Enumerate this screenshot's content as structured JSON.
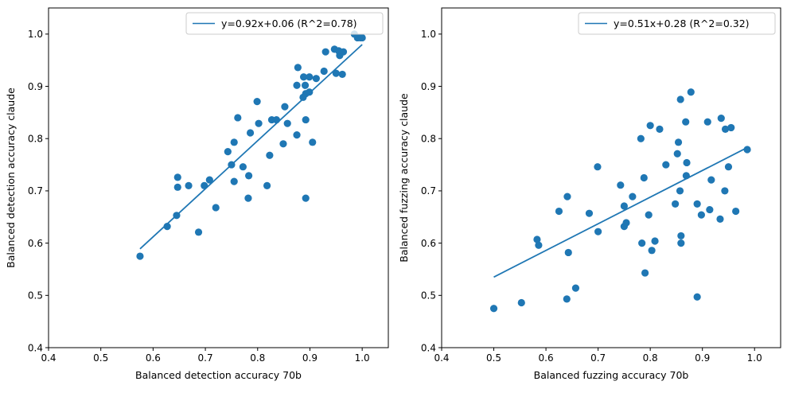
{
  "chart_data": [
    {
      "type": "scatter",
      "xlabel": "Balanced detection accuracy 70b",
      "ylabel": "Balanced detection accuracy claude",
      "xlim": [
        0.4,
        1.05
      ],
      "ylim": [
        0.4,
        1.05
      ],
      "xticks": [
        0.4,
        0.5,
        0.6,
        0.7,
        0.8,
        0.9,
        1.0
      ],
      "yticks": [
        0.4,
        0.5,
        0.6,
        0.7,
        0.8,
        0.9,
        1.0
      ],
      "tick_labels": [
        "0.4",
        "0.5",
        "0.6",
        "0.7",
        "0.8",
        "0.9",
        "1.0"
      ],
      "legend": {
        "label": "y=0.92x+0.06 (R^2=0.78)",
        "placement": "top-right"
      },
      "fit": {
        "slope": 0.92,
        "intercept": 0.06,
        "x_range": [
          0.575,
          1.0
        ]
      },
      "point_color": "#1f77b4",
      "points": [
        [
          0.575,
          0.575
        ],
        [
          0.627,
          0.632
        ],
        [
          0.645,
          0.653
        ],
        [
          0.647,
          0.726
        ],
        [
          0.647,
          0.707
        ],
        [
          0.668,
          0.71
        ],
        [
          0.687,
          0.621
        ],
        [
          0.698,
          0.71
        ],
        [
          0.708,
          0.721
        ],
        [
          0.72,
          0.668
        ],
        [
          0.743,
          0.775
        ],
        [
          0.75,
          0.75
        ],
        [
          0.755,
          0.793
        ],
        [
          0.755,
          0.718
        ],
        [
          0.762,
          0.84
        ],
        [
          0.772,
          0.746
        ],
        [
          0.782,
          0.686
        ],
        [
          0.783,
          0.729
        ],
        [
          0.786,
          0.811
        ],
        [
          0.799,
          0.871
        ],
        [
          0.802,
          0.829
        ],
        [
          0.818,
          0.71
        ],
        [
          0.823,
          0.768
        ],
        [
          0.827,
          0.836
        ],
        [
          0.836,
          0.836
        ],
        [
          0.849,
          0.79
        ],
        [
          0.852,
          0.861
        ],
        [
          0.857,
          0.829
        ],
        [
          0.875,
          0.807
        ],
        [
          0.875,
          0.902
        ],
        [
          0.877,
          0.936
        ],
        [
          0.887,
          0.879
        ],
        [
          0.888,
          0.918
        ],
        [
          0.891,
          0.902
        ],
        [
          0.892,
          0.886
        ],
        [
          0.892,
          0.836
        ],
        [
          0.892,
          0.686
        ],
        [
          0.899,
          0.918
        ],
        [
          0.899,
          0.889
        ],
        [
          0.905,
          0.793
        ],
        [
          0.912,
          0.915
        ],
        [
          0.927,
          0.929
        ],
        [
          0.93,
          0.966
        ],
        [
          0.947,
          0.971
        ],
        [
          0.95,
          0.925
        ],
        [
          0.955,
          0.968
        ],
        [
          0.957,
          0.959
        ],
        [
          0.962,
          0.923
        ],
        [
          0.964,
          0.966
        ],
        [
          0.985,
          1.0
        ],
        [
          0.991,
          0.993
        ],
        [
          0.997,
          0.993
        ],
        [
          1.0,
          0.993
        ]
      ]
    },
    {
      "type": "scatter",
      "xlabel": "Balanced fuzzing accuracy 70b",
      "ylabel": "Balanced fuzzing accuracy claude",
      "xlim": [
        0.4,
        1.05
      ],
      "ylim": [
        0.4,
        1.05
      ],
      "xticks": [
        0.4,
        0.5,
        0.6,
        0.7,
        0.8,
        0.9,
        1.0
      ],
      "yticks": [
        0.4,
        0.5,
        0.6,
        0.7,
        0.8,
        0.9,
        1.0
      ],
      "tick_labels": [
        "0.4",
        "0.5",
        "0.6",
        "0.7",
        "0.8",
        "0.9",
        "1.0"
      ],
      "legend": {
        "label": "y=0.51x+0.28 (R^2=0.32)",
        "placement": "top-right"
      },
      "fit": {
        "slope": 0.51,
        "intercept": 0.28,
        "x_range": [
          0.5,
          0.985
        ]
      },
      "point_color": "#1f77b4",
      "points": [
        [
          0.5,
          0.475
        ],
        [
          0.553,
          0.486
        ],
        [
          0.583,
          0.607
        ],
        [
          0.586,
          0.596
        ],
        [
          0.625,
          0.661
        ],
        [
          0.64,
          0.493
        ],
        [
          0.641,
          0.689
        ],
        [
          0.643,
          0.582
        ],
        [
          0.657,
          0.514
        ],
        [
          0.683,
          0.657
        ],
        [
          0.699,
          0.746
        ],
        [
          0.7,
          0.622
        ],
        [
          0.743,
          0.711
        ],
        [
          0.75,
          0.671
        ],
        [
          0.75,
          0.632
        ],
        [
          0.754,
          0.639
        ],
        [
          0.766,
          0.689
        ],
        [
          0.782,
          0.8
        ],
        [
          0.784,
          0.6
        ],
        [
          0.788,
          0.725
        ],
        [
          0.79,
          0.543
        ],
        [
          0.797,
          0.654
        ],
        [
          0.8,
          0.825
        ],
        [
          0.803,
          0.586
        ],
        [
          0.809,
          0.604
        ],
        [
          0.818,
          0.818
        ],
        [
          0.83,
          0.75
        ],
        [
          0.848,
          0.675
        ],
        [
          0.852,
          0.771
        ],
        [
          0.854,
          0.793
        ],
        [
          0.857,
          0.7
        ],
        [
          0.858,
          0.875
        ],
        [
          0.859,
          0.614
        ],
        [
          0.859,
          0.6
        ],
        [
          0.868,
          0.832
        ],
        [
          0.869,
          0.729
        ],
        [
          0.87,
          0.754
        ],
        [
          0.878,
          0.889
        ],
        [
          0.89,
          0.497
        ],
        [
          0.89,
          0.675
        ],
        [
          0.898,
          0.654
        ],
        [
          0.91,
          0.832
        ],
        [
          0.914,
          0.664
        ],
        [
          0.917,
          0.721
        ],
        [
          0.934,
          0.646
        ],
        [
          0.936,
          0.839
        ],
        [
          0.943,
          0.7
        ],
        [
          0.944,
          0.818
        ],
        [
          0.95,
          0.746
        ],
        [
          0.955,
          0.821
        ],
        [
          0.964,
          0.661
        ],
        [
          0.986,
          0.779
        ]
      ]
    }
  ]
}
